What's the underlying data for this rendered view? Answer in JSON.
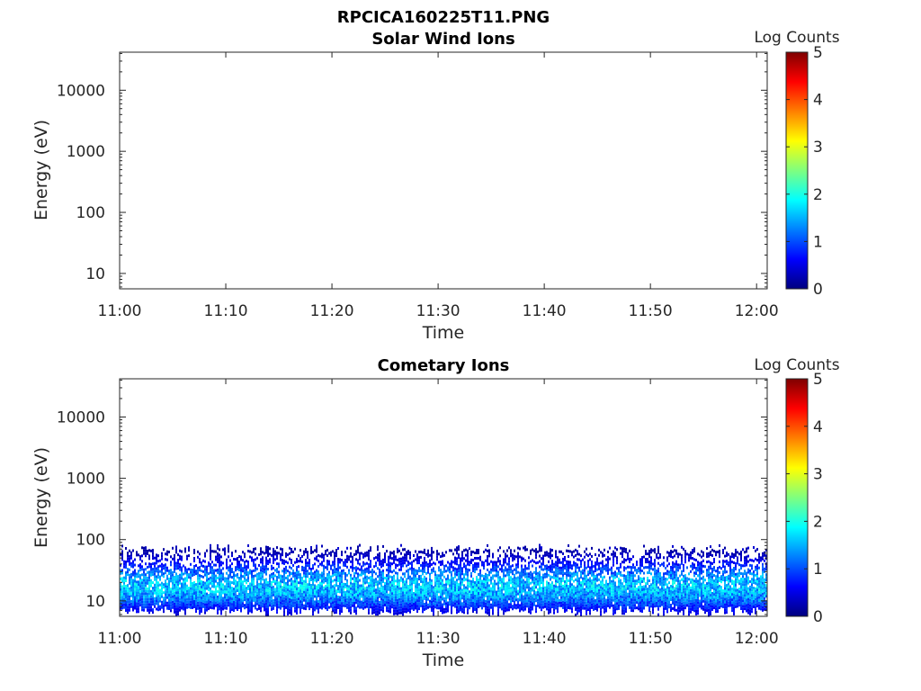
{
  "figure": {
    "title": "RPCICA160225T11.PNG"
  },
  "colormap": {
    "name": "jet",
    "stops": [
      "#00007f",
      "#0000ff",
      "#007fff",
      "#00ffff",
      "#7fff7f",
      "#ffff00",
      "#ff7f00",
      "#ff0000",
      "#7f0000"
    ]
  },
  "chart_data": [
    {
      "type": "heatmap",
      "title": "Solar Wind Ions",
      "xlabel": "Time",
      "ylabel": "Energy (eV)",
      "x_ticks": [
        "11:00",
        "11:10",
        "11:20",
        "11:30",
        "11:40",
        "11:50",
        "12:00"
      ],
      "xlim": [
        "11:00",
        "12:01"
      ],
      "y_scale": "log",
      "y_ticks": [
        "10",
        "100",
        "1000",
        "10000"
      ],
      "ylim": [
        5.6,
        42000
      ],
      "colorbar": {
        "label": "Log Counts",
        "ticks": [
          "0",
          "1",
          "2",
          "3",
          "4",
          "5"
        ],
        "range": [
          0,
          5
        ]
      },
      "counts": "none",
      "grid": false
    },
    {
      "type": "heatmap",
      "title": "Cometary Ions",
      "xlabel": "Time",
      "ylabel": "Energy (eV)",
      "x_ticks": [
        "11:00",
        "11:10",
        "11:20",
        "11:30",
        "11:40",
        "11:50",
        "12:00"
      ],
      "xlim": [
        "11:00",
        "12:01"
      ],
      "y_scale": "log",
      "y_ticks": [
        "10",
        "100",
        "1000",
        "10000"
      ],
      "ylim": [
        5.6,
        42000
      ],
      "colorbar": {
        "label": "Log Counts",
        "ticks": [
          "0",
          "1",
          "2",
          "3",
          "4",
          "5"
        ],
        "range": [
          0,
          5
        ]
      },
      "grid": false,
      "band": {
        "energy_min_ev": 6,
        "energy_max_ev": 85,
        "peak_energy_ev": 18,
        "peak_log_counts": 1.6,
        "time_start": "11:00",
        "time_end": "12:01"
      }
    }
  ]
}
